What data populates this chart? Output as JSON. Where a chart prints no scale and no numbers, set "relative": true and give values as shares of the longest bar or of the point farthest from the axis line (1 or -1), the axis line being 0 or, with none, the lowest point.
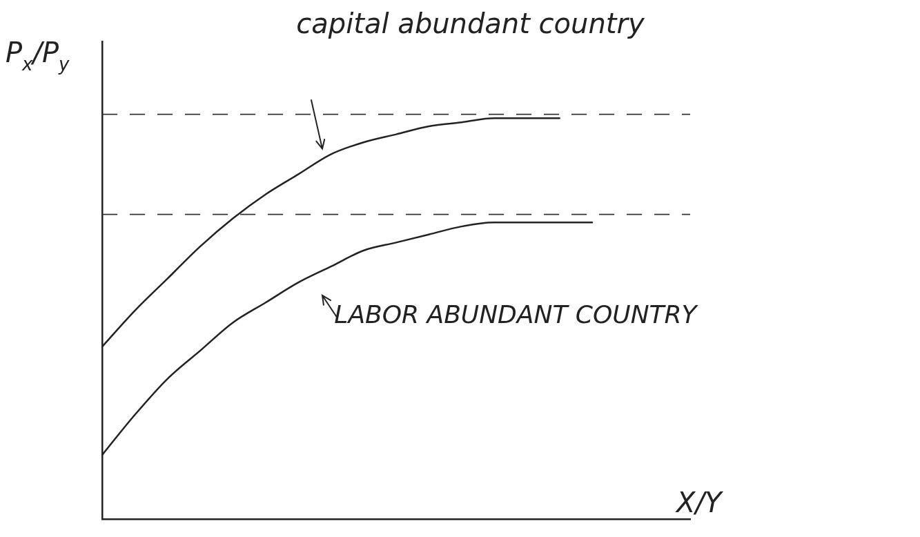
{
  "chart_data": {
    "type": "line",
    "relative": true,
    "xlabel": "X/Y",
    "ylabel": "P$_{x}$/P$_{y}$",
    "categories": [
      null,
      null,
      null,
      null,
      null,
      null,
      null,
      null,
      null,
      null,
      null,
      null,
      null,
      null,
      null,
      null
    ],
    "series": [
      {
        "color": "#222222",
        "values": [
          0.43,
          0.52,
          0.6,
          0.68,
          0.75,
          0.81,
          0.86,
          0.91,
          0.94,
          0.96,
          0.98,
          0.99,
          1.0,
          1.0,
          1.0,
          null
        ]
      },
      {
        "color": "#222222",
        "values": [
          0.16,
          0.26,
          0.35,
          0.42,
          0.49,
          0.54,
          0.59,
          0.63,
          0.67,
          0.69,
          0.71,
          0.73,
          0.74,
          0.74,
          0.74,
          0.74
        ]
      }
    ],
    "annotations": [
      "capital abundant country",
      "LABOR ABUNDANT COUNTRY"
    ],
    "ref_lines": [
      {
        "axis": "y",
        "value": 1.01,
        "color": "#333333",
        "line_style": "dashed"
      },
      {
        "axis": "y",
        "value": 0.76,
        "color": "#333333",
        "line_style": "dashed"
      }
    ],
    "grid": false,
    "legend": false,
    "marker": "none",
    "line_style": "solid"
  }
}
